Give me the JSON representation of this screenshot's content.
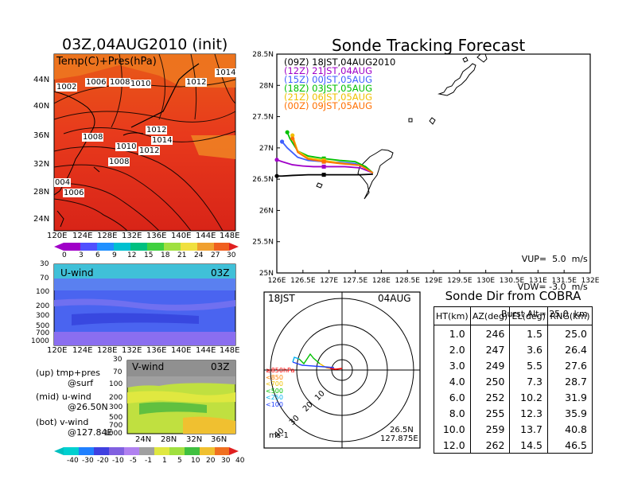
{
  "left_title": "03Z,04AUG2010 (init)",
  "right_title": "Sonde Tracking Forecast",
  "map_panel": {
    "label": "Temp(C)+Pres(hPa)",
    "lat_labels": [
      "44N",
      "40N",
      "36N",
      "32N",
      "28N",
      "24N"
    ],
    "lon_labels": [
      "120E",
      "124E",
      "128E",
      "132E",
      "136E",
      "140E",
      "144E",
      "148E"
    ],
    "pressure_labels": [
      "1002",
      "1006",
      "1008",
      "1010",
      "1012",
      "1014",
      "1008",
      "1010",
      "1012",
      "1014",
      "1012",
      "1008",
      "004",
      "1006"
    ]
  },
  "temp_colorbar": [
    "0",
    "3",
    "6",
    "9",
    "12",
    "15",
    "18",
    "21",
    "24",
    "27",
    "30"
  ],
  "uwind_panel": {
    "label": "U-wind",
    "time": "03Z",
    "p_labels": [
      "30",
      "70",
      "100",
      "200",
      "300",
      "500",
      "700",
      "1000"
    ],
    "lon_labels": [
      "120E",
      "124E",
      "128E",
      "132E",
      "136E",
      "140E",
      "144E",
      "148E"
    ]
  },
  "vwind_panel": {
    "label": "V-wind",
    "time": "03Z",
    "p_labels": [
      "30",
      "70",
      "100",
      "200",
      "300",
      "500",
      "700",
      "1000"
    ],
    "lat_labels": [
      "24N",
      "28N",
      "32N",
      "36N"
    ]
  },
  "legend_text": {
    "up": "(up) tmp+pres",
    "up_sub": "@surf",
    "mid": "(mid) u-wind",
    "mid_sub": "@26.50N",
    "bot": "(bot) v-wind",
    "bot_sub": "@127.84E"
  },
  "wind_colorbar": [
    "-40",
    "-30",
    "-20",
    "-10",
    "-5",
    "-1",
    "1",
    "5",
    "10",
    "20",
    "30",
    "40"
  ],
  "colors": {
    "c09Z": "#000000",
    "c12Z": "#a000c8",
    "c15Z": "#4060ff",
    "c18Z": "#00c000",
    "c21Z": "#f0c000",
    "c00Z": "#ff7000",
    "land_bg": "#e83020"
  },
  "chart_data": {
    "type": "line",
    "title": "Sonde Tracking Forecast",
    "xlim": [
      126,
      132
    ],
    "ylim": [
      25,
      28.5
    ],
    "x_ticks": [
      "126E",
      "126.5E",
      "127E",
      "127.5E",
      "128E",
      "128.5E",
      "129E",
      "129.5E",
      "130E",
      "130.5E",
      "131E",
      "131.5E",
      "132E"
    ],
    "y_ticks": [
      "25N",
      "25.5N",
      "26N",
      "26.5N",
      "27N",
      "27.5N",
      "28N",
      "28.5N"
    ],
    "legend": [
      {
        "code": "(09Z)",
        "label": "18JST,04AUG2010",
        "color": "#000000"
      },
      {
        "code": "(12Z)",
        "label": "21JST,04AUG",
        "color": "#a000c8"
      },
      {
        "code": "(15Z)",
        "label": "00JST,05AUG",
        "color": "#4060ff"
      },
      {
        "code": "(18Z)",
        "label": "03JST,05AUG",
        "color": "#00c000"
      },
      {
        "code": "(21Z)",
        "label": "06JST,05AUG",
        "color": "#f0c000"
      },
      {
        "code": "(00Z)",
        "label": "09JST,05AUG",
        "color": "#ff7000"
      }
    ],
    "series": [
      {
        "name": "(09Z)",
        "color": "#000000",
        "x": [
          127.84,
          127.6,
          127.3,
          127.1,
          126.9,
          126.6,
          126.3,
          126.1,
          126.0
        ],
        "y": [
          26.58,
          26.57,
          26.57,
          26.57,
          26.57,
          26.57,
          26.56,
          26.55,
          26.55
        ]
      },
      {
        "name": "(12Z)",
        "color": "#a000c8",
        "x": [
          127.84,
          127.6,
          127.3,
          127.1,
          126.9,
          126.7,
          126.5,
          126.3,
          126.1,
          126.0
        ],
        "y": [
          26.6,
          26.68,
          26.7,
          26.7,
          26.7,
          26.7,
          26.71,
          26.73,
          26.78,
          26.81
        ]
      },
      {
        "name": "(15Z)",
        "color": "#4060ff",
        "x": [
          127.84,
          127.7,
          127.5,
          127.2,
          126.9,
          126.6,
          126.4,
          126.2,
          126.1
        ],
        "y": [
          26.6,
          26.68,
          26.75,
          26.77,
          26.78,
          26.8,
          26.85,
          27.0,
          27.1
        ]
      },
      {
        "name": "(18Z)",
        "color": "#00c000",
        "x": [
          127.84,
          127.7,
          127.5,
          127.2,
          126.9,
          126.6,
          126.4,
          126.25,
          126.2
        ],
        "y": [
          26.6,
          26.7,
          26.78,
          26.8,
          26.83,
          26.87,
          26.95,
          27.15,
          27.25
        ]
      },
      {
        "name": "(21Z)",
        "color": "#f0c000",
        "x": [
          127.84,
          127.6,
          127.2,
          126.9,
          126.6,
          126.4,
          126.3
        ],
        "y": [
          26.6,
          26.72,
          26.76,
          26.8,
          26.84,
          26.95,
          27.2
        ]
      },
      {
        "name": "(00Z)",
        "color": "#ff7000",
        "x": [
          127.84,
          127.6,
          127.2,
          126.9,
          126.6,
          126.4,
          126.3
        ],
        "y": [
          26.6,
          26.72,
          26.75,
          26.78,
          26.82,
          26.93,
          27.15
        ]
      }
    ],
    "info": {
      "vup": "VUP=  5.0  m/s",
      "vdw": "VDW= -3.0  m/s",
      "burst": "Burst Alt= 25.0  km"
    }
  },
  "polar_panel": {
    "time": "18JST",
    "date": "04AUG",
    "ring_labels": [
      "10",
      "20",
      "30",
      "40"
    ],
    "levels": [
      {
        "label": "≥850hPa",
        "color": "#ff0000"
      },
      {
        "label": "<850",
        "color": "#ff8000"
      },
      {
        "label": "<700",
        "color": "#f0c000"
      },
      {
        "label": "<500",
        "color": "#00c000"
      },
      {
        "label": "<250",
        "color": "#00b0f0"
      },
      {
        "label": "<100",
        "color": "#2040ff"
      }
    ],
    "unit": "ms-1",
    "lat": "26.5N",
    "lon": "127.875E"
  },
  "sonde_table": {
    "title": "Sonde Dir from COBRA",
    "headers": [
      "HT(km)",
      "AZ(deg)",
      "EL(deg)",
      "RNG(km)"
    ],
    "rows": [
      [
        "1.0",
        "246",
        "1.5",
        "25.0"
      ],
      [
        "2.0",
        "247",
        "3.6",
        "26.4"
      ],
      [
        "3.0",
        "249",
        "5.5",
        "27.6"
      ],
      [
        "4.0",
        "250",
        "7.3",
        "28.7"
      ],
      [
        "6.0",
        "252",
        "10.2",
        "31.9"
      ],
      [
        "8.0",
        "255",
        "12.3",
        "35.9"
      ],
      [
        "10.0",
        "259",
        "13.7",
        "40.8"
      ],
      [
        "12.0",
        "262",
        "14.5",
        "46.5"
      ]
    ]
  }
}
